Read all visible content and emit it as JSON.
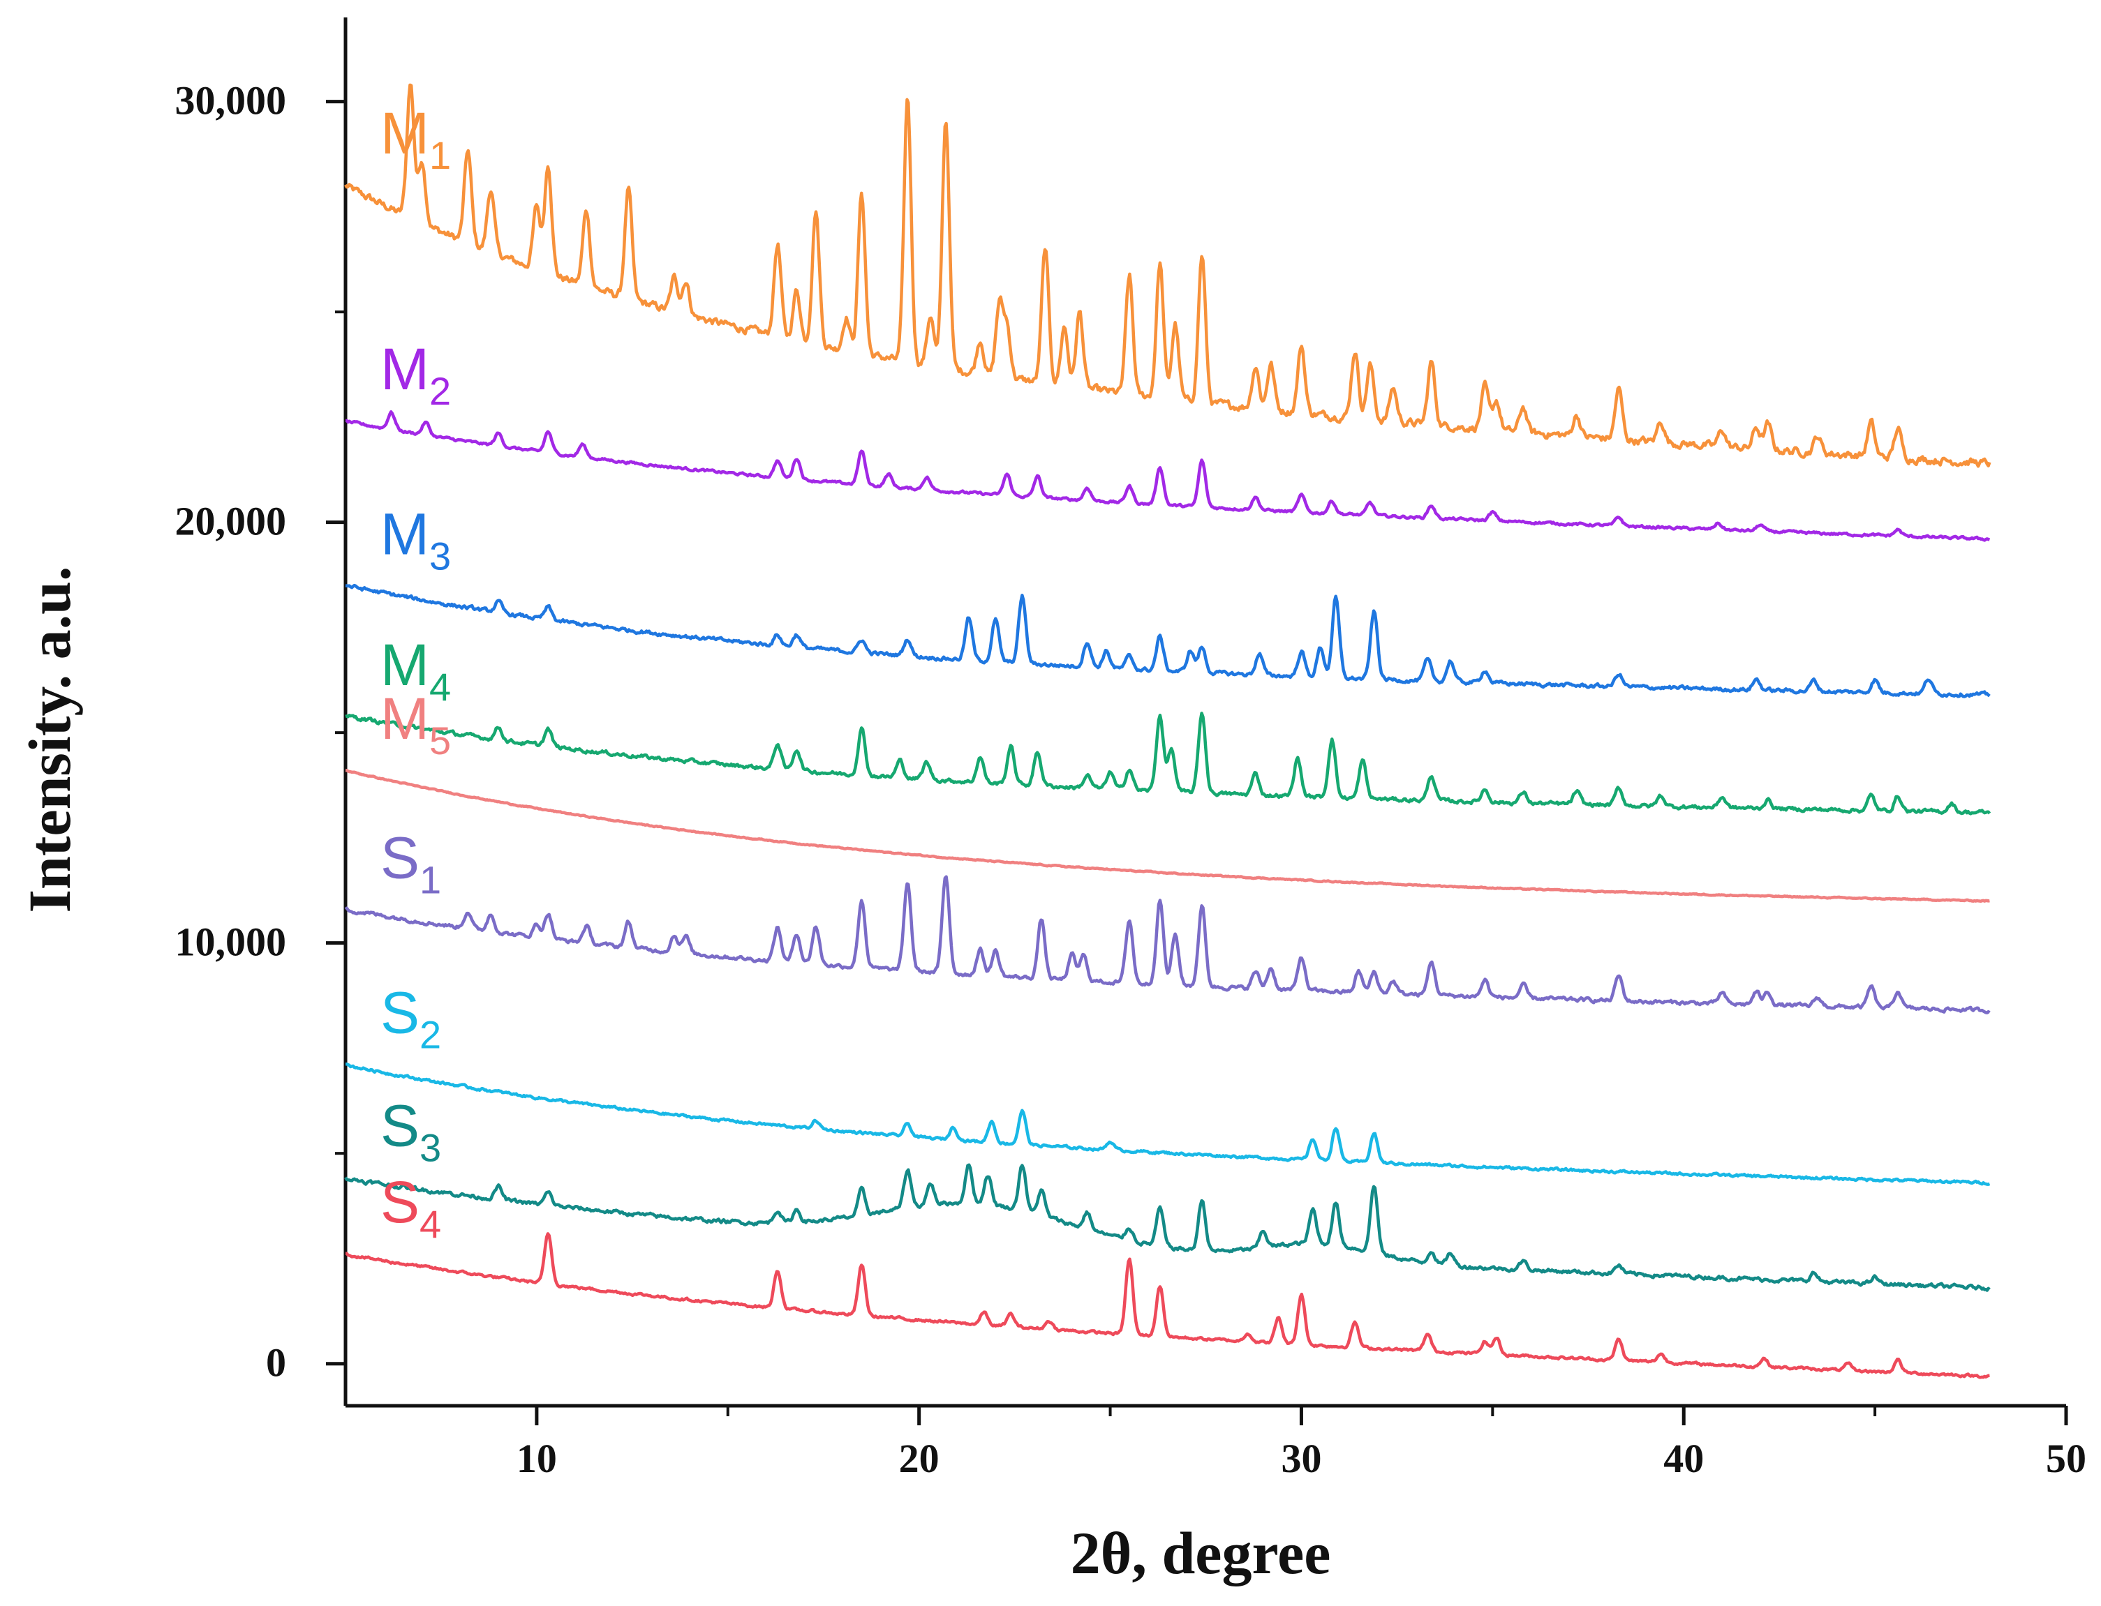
{
  "chart_data": {
    "type": "line",
    "title": "",
    "xlabel": "2θ, degree",
    "ylabel": "Intensity. a.u.",
    "xlim": [
      5,
      50
    ],
    "ylim": [
      -1000,
      32000
    ],
    "x_ticks": [
      10,
      20,
      30,
      40,
      50
    ],
    "x_tick_labels": [
      "10",
      "20",
      "30",
      "40",
      "50"
    ],
    "y_ticks": [
      0,
      10000,
      20000,
      30000
    ],
    "y_tick_labels": [
      "0",
      "10,000",
      "20,000",
      "30,000"
    ],
    "grid": false,
    "legend": "inline labels at left of each trace",
    "x_range": [
      5,
      48
    ],
    "series": [
      {
        "name": "M1",
        "label_main": "M",
        "label_sub": "1",
        "color": "#f7913a",
        "start": 28000,
        "end": 21400,
        "decay": 4.0,
        "tail": 0.7,
        "noise": 180,
        "peaks": [
          [
            6.7,
            3200
          ],
          [
            7.0,
            1500
          ],
          [
            8.2,
            2200
          ],
          [
            8.8,
            1500
          ],
          [
            10.0,
            1500
          ],
          [
            10.3,
            2600
          ],
          [
            11.3,
            1800
          ],
          [
            12.4,
            2600
          ],
          [
            13.6,
            800
          ],
          [
            13.9,
            800
          ],
          [
            16.3,
            2200
          ],
          [
            16.8,
            1200
          ],
          [
            17.3,
            3200
          ],
          [
            18.1,
            800
          ],
          [
            18.5,
            3800
          ],
          [
            19.7,
            6300
          ],
          [
            20.3,
            1200
          ],
          [
            20.7,
            5900
          ],
          [
            21.6,
            800
          ],
          [
            22.1,
            1700
          ],
          [
            22.3,
            1200
          ],
          [
            23.3,
            3200
          ],
          [
            23.8,
            1400
          ],
          [
            24.2,
            1800
          ],
          [
            25.5,
            2800
          ],
          [
            26.3,
            3200
          ],
          [
            26.7,
            1800
          ],
          [
            27.4,
            3500
          ],
          [
            28.8,
            1000
          ],
          [
            29.2,
            1100
          ],
          [
            30.0,
            1600
          ],
          [
            31.4,
            1600
          ],
          [
            31.8,
            1300
          ],
          [
            32.4,
            800
          ],
          [
            33.4,
            1500
          ],
          [
            34.8,
            1000
          ],
          [
            35.1,
            700
          ],
          [
            35.8,
            600
          ],
          [
            37.2,
            500
          ],
          [
            38.3,
            1200
          ],
          [
            39.4,
            500
          ],
          [
            41.0,
            400
          ],
          [
            41.9,
            500
          ],
          [
            42.2,
            600
          ],
          [
            43.5,
            400
          ],
          [
            44.9,
            800
          ],
          [
            45.6,
            700
          ]
        ]
      },
      {
        "name": "M2",
        "label_main": "M",
        "label_sub": "2",
        "color": "#a228e6",
        "start": 22400,
        "end": 19600,
        "decay": 3.5,
        "tail": 0.6,
        "noise": 60,
        "peaks": [
          [
            6.2,
            400
          ],
          [
            7.1,
            300
          ],
          [
            9.0,
            300
          ],
          [
            10.3,
            500
          ],
          [
            11.2,
            300
          ],
          [
            16.3,
            400
          ],
          [
            16.8,
            500
          ],
          [
            18.5,
            800
          ],
          [
            19.2,
            300
          ],
          [
            20.2,
            300
          ],
          [
            22.3,
            500
          ],
          [
            23.1,
            500
          ],
          [
            24.4,
            300
          ],
          [
            25.5,
            400
          ],
          [
            26.3,
            900
          ],
          [
            27.4,
            1100
          ],
          [
            28.8,
            300
          ],
          [
            30.0,
            400
          ],
          [
            30.8,
            300
          ],
          [
            31.8,
            300
          ],
          [
            33.4,
            300
          ],
          [
            35.0,
            200
          ],
          [
            38.3,
            200
          ],
          [
            40.9,
            150
          ],
          [
            42.0,
            150
          ],
          [
            45.6,
            150
          ]
        ]
      },
      {
        "name": "M3",
        "label_main": "M",
        "label_sub": "3",
        "color": "#1f77e0",
        "start": 18500,
        "end": 15900,
        "decay": 3.5,
        "tail": 0.8,
        "noise": 90,
        "peaks": [
          [
            9.0,
            250
          ],
          [
            10.3,
            300
          ],
          [
            16.3,
            250
          ],
          [
            16.8,
            300
          ],
          [
            18.5,
            300
          ],
          [
            19.7,
            400
          ],
          [
            21.3,
            1000
          ],
          [
            22.0,
            1000
          ],
          [
            22.7,
            1600
          ],
          [
            24.4,
            600
          ],
          [
            24.9,
            400
          ],
          [
            25.5,
            300
          ],
          [
            26.3,
            800
          ],
          [
            27.1,
            500
          ],
          [
            27.4,
            600
          ],
          [
            28.9,
            500
          ],
          [
            30.0,
            600
          ],
          [
            30.5,
            700
          ],
          [
            30.9,
            1900
          ],
          [
            31.9,
            1600
          ],
          [
            33.3,
            500
          ],
          [
            33.9,
            500
          ],
          [
            34.8,
            300
          ],
          [
            38.3,
            300
          ],
          [
            41.9,
            250
          ],
          [
            43.4,
            250
          ],
          [
            45.0,
            300
          ],
          [
            46.4,
            350
          ]
        ]
      },
      {
        "name": "M4",
        "label_main": "M",
        "label_sub": "4",
        "color": "#16a870",
        "start": 15400,
        "end": 13100,
        "decay": 3.5,
        "tail": 0.8,
        "noise": 90,
        "peaks": [
          [
            9.0,
            300
          ],
          [
            10.3,
            400
          ],
          [
            16.3,
            600
          ],
          [
            16.8,
            500
          ],
          [
            18.5,
            1100
          ],
          [
            19.5,
            400
          ],
          [
            20.2,
            400
          ],
          [
            21.6,
            600
          ],
          [
            22.4,
            900
          ],
          [
            23.1,
            800
          ],
          [
            24.4,
            300
          ],
          [
            25.0,
            400
          ],
          [
            25.5,
            500
          ],
          [
            26.3,
            1800
          ],
          [
            26.6,
            1000
          ],
          [
            27.4,
            1900
          ],
          [
            28.8,
            500
          ],
          [
            29.9,
            900
          ],
          [
            30.8,
            1400
          ],
          [
            31.6,
            900
          ],
          [
            33.4,
            600
          ],
          [
            34.8,
            300
          ],
          [
            35.8,
            250
          ],
          [
            37.2,
            300
          ],
          [
            38.3,
            400
          ],
          [
            39.4,
            250
          ],
          [
            41.0,
            250
          ],
          [
            42.2,
            200
          ],
          [
            44.9,
            350
          ],
          [
            45.6,
            350
          ],
          [
            47.0,
            200
          ]
        ]
      },
      {
        "name": "M5",
        "label_main": "M",
        "label_sub": "5",
        "color": "#f08080",
        "start": 14100,
        "end": 11000,
        "decay": 3.0,
        "tail": 0.9,
        "noise": 25,
        "peaks": []
      },
      {
        "name": "S1",
        "label_main": "S",
        "label_sub": "1",
        "color": "#7a6cc7",
        "start": 10800,
        "end": 8400,
        "decay": 3.5,
        "tail": 0.7,
        "noise": 90,
        "peaks": [
          [
            8.2,
            400
          ],
          [
            8.8,
            400
          ],
          [
            10.0,
            300
          ],
          [
            10.3,
            600
          ],
          [
            11.3,
            400
          ],
          [
            12.4,
            600
          ],
          [
            13.6,
            400
          ],
          [
            13.9,
            400
          ],
          [
            16.3,
            800
          ],
          [
            16.8,
            700
          ],
          [
            17.3,
            900
          ],
          [
            18.5,
            1600
          ],
          [
            19.7,
            2100
          ],
          [
            20.7,
            2300
          ],
          [
            21.6,
            600
          ],
          [
            22.0,
            600
          ],
          [
            23.2,
            1400
          ],
          [
            24.0,
            600
          ],
          [
            24.3,
            600
          ],
          [
            25.5,
            1500
          ],
          [
            26.3,
            2000
          ],
          [
            26.7,
            1200
          ],
          [
            27.4,
            1900
          ],
          [
            28.8,
            400
          ],
          [
            29.2,
            500
          ],
          [
            30.0,
            800
          ],
          [
            31.5,
            500
          ],
          [
            31.9,
            500
          ],
          [
            32.4,
            300
          ],
          [
            33.4,
            800
          ],
          [
            34.8,
            400
          ],
          [
            35.8,
            300
          ],
          [
            38.3,
            600
          ],
          [
            41.0,
            250
          ],
          [
            41.9,
            300
          ],
          [
            42.2,
            300
          ],
          [
            43.5,
            200
          ],
          [
            44.9,
            500
          ],
          [
            45.6,
            400
          ]
        ]
      },
      {
        "name": "S2",
        "label_main": "S",
        "label_sub": "2",
        "color": "#19b8e6",
        "start": 7100,
        "end": 4300,
        "decay": 3.5,
        "tail": 0.7,
        "noise": 60,
        "peaks": [
          [
            17.3,
            200
          ],
          [
            19.7,
            300
          ],
          [
            20.9,
            300
          ],
          [
            21.9,
            500
          ],
          [
            22.7,
            800
          ],
          [
            25.0,
            200
          ],
          [
            30.3,
            500
          ],
          [
            30.9,
            800
          ],
          [
            31.9,
            700
          ]
        ]
      },
      {
        "name": "S3",
        "label_main": "S",
        "label_sub": "3",
        "color": "#138a87",
        "start": 4400,
        "end": 1800,
        "decay": 3.5,
        "tail": 0.5,
        "noise": 90,
        "peaks": [
          [
            9.0,
            300
          ],
          [
            10.3,
            300
          ],
          [
            16.3,
            300
          ],
          [
            16.8,
            300
          ],
          [
            18.5,
            600
          ],
          [
            19.7,
            900
          ],
          [
            20.3,
            500
          ],
          [
            21.3,
            900
          ],
          [
            21.8,
            700
          ],
          [
            22.7,
            1100
          ],
          [
            23.2,
            600
          ],
          [
            24.4,
            400
          ],
          [
            25.5,
            300
          ],
          [
            26.3,
            900
          ],
          [
            27.4,
            1200
          ],
          [
            29.0,
            400
          ],
          [
            30.3,
            800
          ],
          [
            30.9,
            1000
          ],
          [
            31.9,
            1600
          ],
          [
            33.4,
            300
          ],
          [
            33.9,
            300
          ],
          [
            35.8,
            200
          ],
          [
            38.3,
            200
          ],
          [
            43.4,
            200
          ],
          [
            45.0,
            150
          ]
        ],
        "humps": [
          [
            21.5,
            900,
            3.5
          ],
          [
            30.5,
            400,
            2.0
          ]
        ]
      },
      {
        "name": "S4",
        "label_main": "S",
        "label_sub": "4",
        "color": "#ee4a5a",
        "start": 2600,
        "end": -300,
        "decay": 3.5,
        "tail": 0.5,
        "noise": 60,
        "peaks": [
          [
            10.3,
            1200
          ],
          [
            16.3,
            900
          ],
          [
            18.5,
            1200
          ],
          [
            21.7,
            300
          ],
          [
            22.4,
            300
          ],
          [
            23.4,
            200
          ],
          [
            25.5,
            1800
          ],
          [
            26.3,
            1200
          ],
          [
            28.6,
            200
          ],
          [
            29.4,
            600
          ],
          [
            30.0,
            1200
          ],
          [
            31.4,
            600
          ],
          [
            33.3,
            400
          ],
          [
            34.8,
            300
          ],
          [
            35.1,
            400
          ],
          [
            38.3,
            500
          ],
          [
            39.4,
            200
          ],
          [
            42.1,
            200
          ],
          [
            44.3,
            150
          ],
          [
            45.6,
            300
          ]
        ]
      }
    ]
  }
}
